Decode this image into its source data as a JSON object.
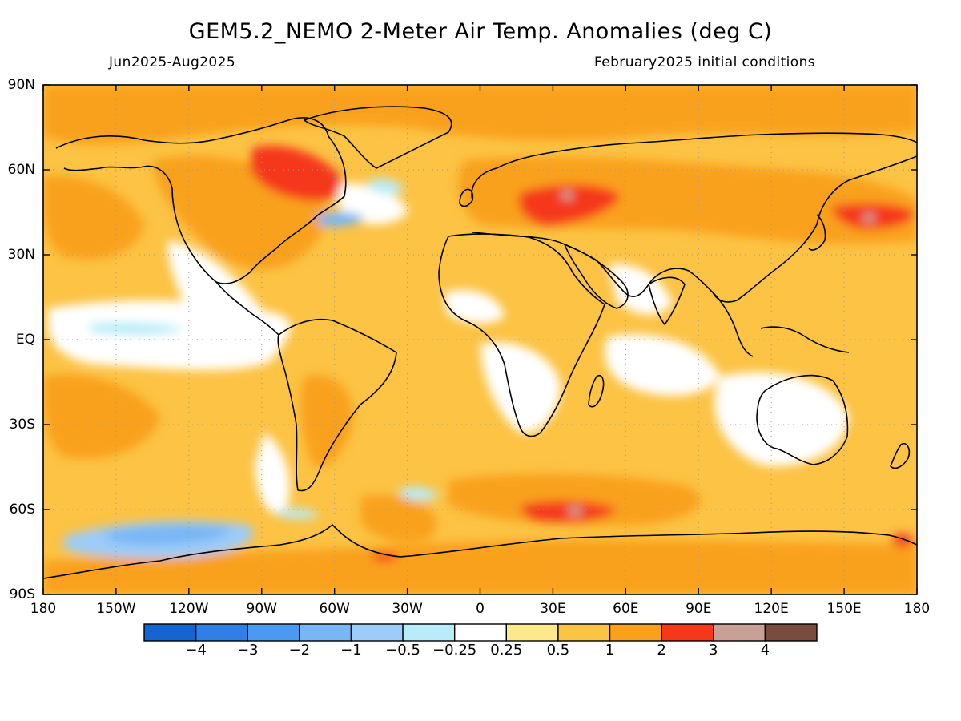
{
  "header": {
    "title": "GEM5.2_NEMO 2-Meter Air Temp. Anomalies (deg C)",
    "subtitle_left": "Jun2025-Aug2025",
    "subtitle_right": "February2025 initial conditions"
  },
  "axes": {
    "lat_labels": [
      "90N",
      "60N",
      "30N",
      "EQ",
      "30S",
      "60S",
      "90S"
    ],
    "lat_values": [
      90,
      60,
      30,
      0,
      -30,
      -60,
      -90
    ],
    "lon_labels": [
      "180",
      "150W",
      "120W",
      "90W",
      "60W",
      "30W",
      "0",
      "30E",
      "60E",
      "90E",
      "120E",
      "150E",
      "180"
    ],
    "lon_values": [
      -180,
      -150,
      -120,
      -90,
      -60,
      -30,
      0,
      30,
      60,
      90,
      120,
      150,
      180
    ],
    "lon_range": [
      -180,
      180
    ],
    "lat_range": [
      -90,
      90
    ],
    "grid": "dotted",
    "projection": "equirectangular"
  },
  "legend": {
    "placement": "bottom",
    "colors": [
      "#1565d0",
      "#2f7fe6",
      "#4a9af2",
      "#78b6f6",
      "#9cccf8",
      "#b8ecf8",
      "#ffffff",
      "#fde98a",
      "#fcc344",
      "#f9a11a",
      "#f5381a",
      "#c9a096",
      "#7a4c40"
    ],
    "labels": [
      "−4",
      "−3",
      "−2",
      "−1",
      "−0.5",
      "−0.25",
      "0.25",
      "0.5",
      "1",
      "2",
      "3",
      "4"
    ],
    "label_values": [
      -4,
      -3,
      -2,
      -1,
      -0.5,
      -0.25,
      0.25,
      0.5,
      1,
      2,
      3,
      4
    ]
  },
  "field": {
    "background_category": "0.5 to 1",
    "regions": [
      {
        "name": "Eastern Canada / Hudson Bay",
        "category": "2 to 3",
        "lon": [
          -95,
          -60
        ],
        "lat": [
          45,
          68
        ]
      },
      {
        "name": "Eastern Europe / Western Russia",
        "category": "2 to 3",
        "lon": [
          15,
          65
        ],
        "lat": [
          43,
          60
        ]
      },
      {
        "name": "Far East Russia",
        "category": "2 to 3",
        "lon": [
          145,
          178
        ],
        "lat": [
          40,
          50
        ]
      },
      {
        "name": "Southern Ocean south of Africa",
        "category": "2 to 3",
        "lon": [
          20,
          60
        ],
        "lat": [
          -61,
          -57
        ]
      },
      {
        "name": "Southeast Pacific near Antarctica",
        "category": "-2 to -1",
        "lon": [
          -160,
          -100
        ],
        "lat": [
          -73,
          -62
        ]
      },
      {
        "name": "Equatorial Pacific",
        "category": "-0.25 to 0.25",
        "lon": [
          -160,
          -90
        ],
        "lat": [
          -5,
          8
        ]
      },
      {
        "name": "Southern Africa",
        "category": "-0.25 to 0.25",
        "lon": [
          12,
          40
        ],
        "lat": [
          -35,
          -10
        ]
      },
      {
        "name": "Australia",
        "category": "-0.25 to 0.25",
        "lon": [
          115,
          150
        ],
        "lat": [
          -38,
          -15
        ]
      },
      {
        "name": "Arctic",
        "category": "1 to 2",
        "lon": [
          -180,
          180
        ],
        "lat": [
          70,
          90
        ]
      },
      {
        "name": "Antarctica",
        "category": "1 to 2",
        "lon": [
          -180,
          180
        ],
        "lat": [
          -90,
          -66
        ]
      }
    ]
  }
}
